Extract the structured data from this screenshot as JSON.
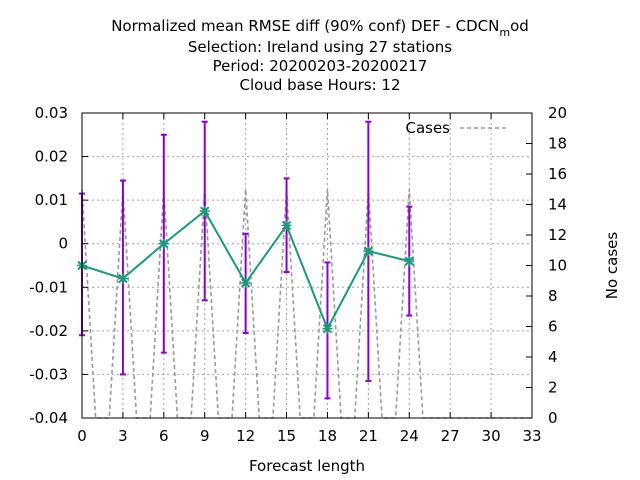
{
  "chart_data": {
    "type": "line",
    "title_lines": [
      "Normalized mean RMSE diff (90% conf) DEF - CDCN",
      "Selection: Ireland using    27 stations",
      "Period: 20200203-20200217",
      "Cloud base   Hours:  12"
    ],
    "title_subscript": "m",
    "title_suffix": "od",
    "xlabel": "Forecast length",
    "ylabel": "",
    "y2label": "No cases",
    "xlim": [
      0,
      33
    ],
    "ylim": [
      -0.04,
      0.03
    ],
    "y2lim": [
      0,
      20
    ],
    "x_ticks": [
      "0",
      "3",
      "6",
      "9",
      "12",
      "15",
      "18",
      "21",
      "24",
      "27",
      "30",
      "33"
    ],
    "y_ticks": [
      "-0.04",
      "-0.03",
      "-0.02",
      "-0.01",
      "0",
      "0.01",
      "0.02",
      "0.03"
    ],
    "y2_ticks": [
      "0",
      "2",
      "4",
      "6",
      "8",
      "10",
      "12",
      "14",
      "16",
      "18",
      "20"
    ],
    "grid": true,
    "legend_position": "top-right",
    "series": [
      {
        "kind": "line-errorbars",
        "color": "#1a9a7a",
        "error_color": "#8a00c8",
        "x": [
          0,
          3,
          6,
          9,
          12,
          15,
          18,
          21,
          24
        ],
        "y": [
          -0.005,
          -0.008,
          0.0,
          0.0075,
          -0.009,
          0.0042,
          -0.0195,
          -0.0017,
          -0.004
        ],
        "y_low": [
          -0.021,
          -0.03,
          -0.025,
          -0.013,
          -0.0205,
          -0.0065,
          -0.0355,
          -0.0315,
          -0.0165
        ],
        "y_high": [
          0.0115,
          0.0145,
          0.025,
          0.028,
          0.0023,
          0.015,
          -0.0043,
          0.028,
          0.0085
        ]
      },
      {
        "name": "Cases",
        "kind": "cases",
        "axis": "y2",
        "color": "#999999",
        "x": [
          0,
          1,
          2,
          3,
          4,
          5,
          6,
          7,
          8,
          9,
          10,
          11,
          12,
          13,
          14,
          15,
          16,
          17,
          18,
          19,
          20,
          21,
          22,
          23,
          24,
          25,
          26,
          27,
          28,
          29,
          30,
          31,
          32,
          33
        ],
        "y": [
          15,
          0,
          0,
          15,
          0,
          0,
          15,
          0,
          0,
          15,
          0,
          0,
          15,
          0,
          0,
          15,
          0,
          0,
          15,
          0,
          0,
          15,
          0,
          0,
          15,
          0,
          0,
          0,
          0,
          0,
          0,
          0,
          0,
          0
        ]
      }
    ]
  }
}
